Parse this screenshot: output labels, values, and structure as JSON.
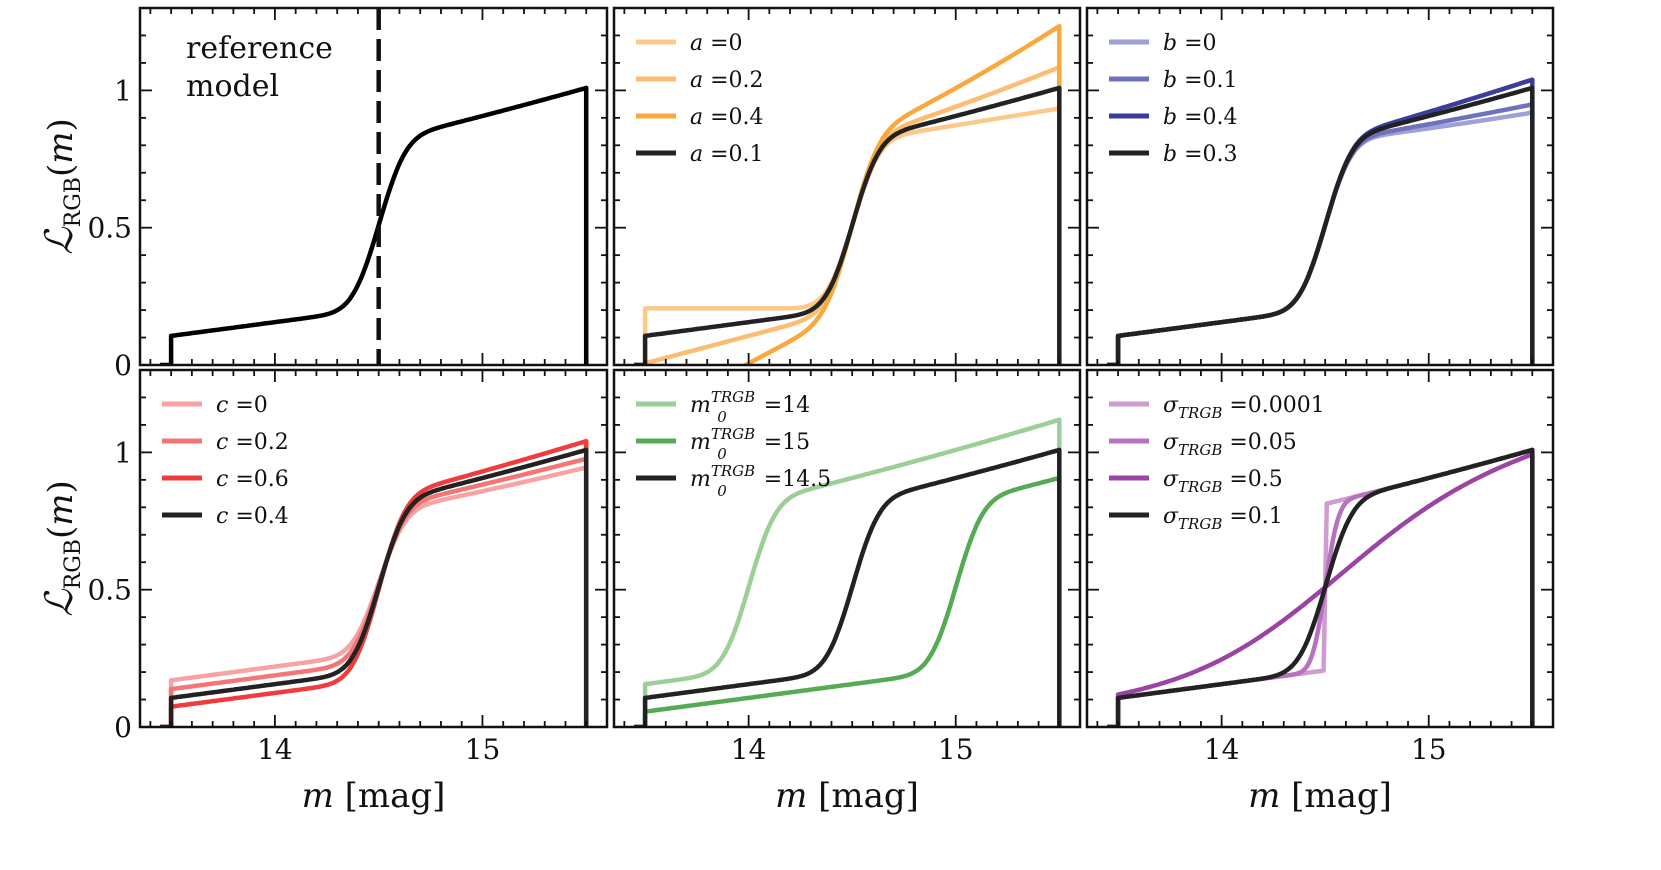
{
  "chart_data": [
    {
      "type": "line",
      "panel": "reference",
      "x_range": [
        13.35,
        15.6
      ],
      "ylim": [
        0,
        1.3
      ],
      "xticks": [
        "14",
        "15"
      ],
      "yticks": [
        "0",
        "0.5",
        "1"
      ],
      "ylabel": "ℒ_RGB(m)",
      "xlabel": "",
      "annotation": [
        "reference",
        "model"
      ],
      "marker_m": 14.5,
      "legend": [],
      "series": [
        {
          "name": "reference",
          "color": "#000000",
          "a": 0.1,
          "b": 0.3,
          "c": 0.4,
          "m0": 14.5,
          "sigma": 0.1
        }
      ]
    },
    {
      "type": "line",
      "panel": "a",
      "x_range": [
        13.35,
        15.6
      ],
      "ylim": [
        0,
        1.3
      ],
      "xticks": [
        "14",
        "15"
      ],
      "yticks": [
        "0",
        "0.5",
        "1"
      ],
      "ylabel": "",
      "xlabel": "",
      "legend": [
        "a =0",
        "a =0.2",
        "a =0.4",
        "a =0.1"
      ],
      "series": [
        {
          "name": "a =0",
          "color": "#fdc98a",
          "a": 0.0,
          "b": 0.3,
          "c": 0.4,
          "m0": 14.5,
          "sigma": 0.1
        },
        {
          "name": "a =0.2",
          "color": "#fcbd72",
          "a": 0.2,
          "b": 0.3,
          "c": 0.4,
          "m0": 14.5,
          "sigma": 0.1
        },
        {
          "name": "a =0.4",
          "color": "#f9a93c",
          "a": 0.4,
          "b": 0.3,
          "c": 0.4,
          "m0": 14.5,
          "sigma": 0.1
        },
        {
          "name": "a =0.1",
          "color": "#222222",
          "a": 0.1,
          "b": 0.3,
          "c": 0.4,
          "m0": 14.5,
          "sigma": 0.1
        }
      ]
    },
    {
      "type": "line",
      "panel": "b",
      "x_range": [
        13.35,
        15.6
      ],
      "ylim": [
        0,
        1.3
      ],
      "xticks": [
        "14",
        "15"
      ],
      "yticks": [
        "0",
        "0.5",
        "1"
      ],
      "ylabel": "",
      "xlabel": "",
      "legend": [
        "b =0",
        "b =0.1",
        "b =0.4",
        "b =0.3"
      ],
      "series": [
        {
          "name": "b =0",
          "color": "#9ea0d6",
          "a": 0.1,
          "b": 0.0,
          "c": 0.4,
          "m0": 14.5,
          "sigma": 0.1
        },
        {
          "name": "b =0.1",
          "color": "#6e71bb",
          "a": 0.1,
          "b": 0.1,
          "c": 0.4,
          "m0": 14.5,
          "sigma": 0.1
        },
        {
          "name": "b =0.4",
          "color": "#3a3d9c",
          "a": 0.1,
          "b": 0.4,
          "c": 0.4,
          "m0": 14.5,
          "sigma": 0.1
        },
        {
          "name": "b =0.3",
          "color": "#222222",
          "a": 0.1,
          "b": 0.3,
          "c": 0.4,
          "m0": 14.5,
          "sigma": 0.1
        }
      ]
    },
    {
      "type": "line",
      "panel": "c",
      "x_range": [
        13.35,
        15.6
      ],
      "ylim": [
        0,
        1.3
      ],
      "xticks": [
        "14",
        "15"
      ],
      "yticks": [
        "0",
        "0.5",
        "1"
      ],
      "ylabel": "ℒ_RGB(m)",
      "xlabel": "m [mag]",
      "legend": [
        "c =0",
        "c =0.2",
        "c =0.6",
        "c =0.4"
      ],
      "series": [
        {
          "name": "c =0",
          "color": "#f8a3a3",
          "a": 0.1,
          "b": 0.3,
          "c": 0.0,
          "m0": 14.5,
          "sigma": 0.1
        },
        {
          "name": "c =0.2",
          "color": "#f47575",
          "a": 0.1,
          "b": 0.3,
          "c": 0.2,
          "m0": 14.5,
          "sigma": 0.1
        },
        {
          "name": "c =0.6",
          "color": "#f03c3c",
          "a": 0.1,
          "b": 0.3,
          "c": 0.6,
          "m0": 14.5,
          "sigma": 0.1
        },
        {
          "name": "c =0.4",
          "color": "#222222",
          "a": 0.1,
          "b": 0.3,
          "c": 0.4,
          "m0": 14.5,
          "sigma": 0.1
        }
      ]
    },
    {
      "type": "line",
      "panel": "m0",
      "x_range": [
        13.35,
        15.6
      ],
      "ylim": [
        0,
        1.3
      ],
      "xticks": [
        "14",
        "15"
      ],
      "yticks": [
        "0",
        "0.5",
        "1"
      ],
      "ylabel": "",
      "xlabel": "m [mag]",
      "legend": [
        "m0TRGB =14",
        "m0TRGB =15",
        "m0TRGB =14.5"
      ],
      "series": [
        {
          "name": "m0TRGB =14",
          "color": "#9ccf98",
          "a": 0.1,
          "b": 0.3,
          "c": 0.4,
          "m0": 14.0,
          "sigma": 0.1
        },
        {
          "name": "m0TRGB =15",
          "color": "#56aa53",
          "a": 0.1,
          "b": 0.3,
          "c": 0.4,
          "m0": 15.0,
          "sigma": 0.1
        },
        {
          "name": "m0TRGB =14.5",
          "color": "#222222",
          "a": 0.1,
          "b": 0.3,
          "c": 0.4,
          "m0": 14.5,
          "sigma": 0.1
        }
      ]
    },
    {
      "type": "line",
      "panel": "sigma",
      "x_range": [
        13.35,
        15.6
      ],
      "ylim": [
        0,
        1.3
      ],
      "xticks": [
        "14",
        "15"
      ],
      "yticks": [
        "0",
        "0.5",
        "1"
      ],
      "ylabel": "",
      "xlabel": "m [mag]",
      "legend": [
        "σTRGB =0.0001",
        "σTRGB =0.05",
        "σTRGB =0.5",
        "σTRGB =0.1"
      ],
      "series": [
        {
          "name": "σTRGB =0.0001",
          "color": "#cf9bd0",
          "a": 0.1,
          "b": 0.3,
          "c": 0.4,
          "m0": 14.5,
          "sigma": 0.0001
        },
        {
          "name": "σTRGB =0.05",
          "color": "#b872bd",
          "a": 0.1,
          "b": 0.3,
          "c": 0.4,
          "m0": 14.5,
          "sigma": 0.05
        },
        {
          "name": "σTRGB =0.5",
          "color": "#9b44a5",
          "a": 0.1,
          "b": 0.3,
          "c": 0.4,
          "m0": 14.5,
          "sigma": 0.5
        },
        {
          "name": "σTRGB =0.1",
          "color": "#222222",
          "a": 0.1,
          "b": 0.3,
          "c": 0.4,
          "m0": 14.5,
          "sigma": 0.1
        }
      ]
    }
  ],
  "legend_display": {
    "a": [
      [
        "a",
        " =0"
      ],
      [
        "a",
        " =0.2"
      ],
      [
        "a",
        " =0.4"
      ],
      [
        "a",
        " =0.1"
      ]
    ],
    "b": [
      [
        "b",
        " =0"
      ],
      [
        "b",
        " =0.1"
      ],
      [
        "b",
        " =0.4"
      ],
      [
        "b",
        " =0.3"
      ]
    ],
    "c": [
      [
        "c",
        " =0"
      ],
      [
        "c",
        " =0.2"
      ],
      [
        "c",
        " =0.6"
      ],
      [
        "c",
        " =0.4"
      ]
    ],
    "m0": [
      [
        "m",
        " =14"
      ],
      [
        "m",
        " =15"
      ],
      [
        "m",
        " =14.5"
      ]
    ],
    "sigma": [
      [
        "σ",
        " =0.0001"
      ],
      [
        "σ",
        " =0.05"
      ],
      [
        "σ",
        " =0.5"
      ],
      [
        "σ",
        " =0.1"
      ]
    ]
  },
  "labels": {
    "ylabel_main": "ℒ",
    "ylabel_sub": "RGB",
    "ylabel_tail": "(m)",
    "xlabel_var": "m",
    "xlabel_unit": " [mag]",
    "m0_sup": "TRGB",
    "m0_sub": "0",
    "sigma_sub": "TRGB"
  }
}
